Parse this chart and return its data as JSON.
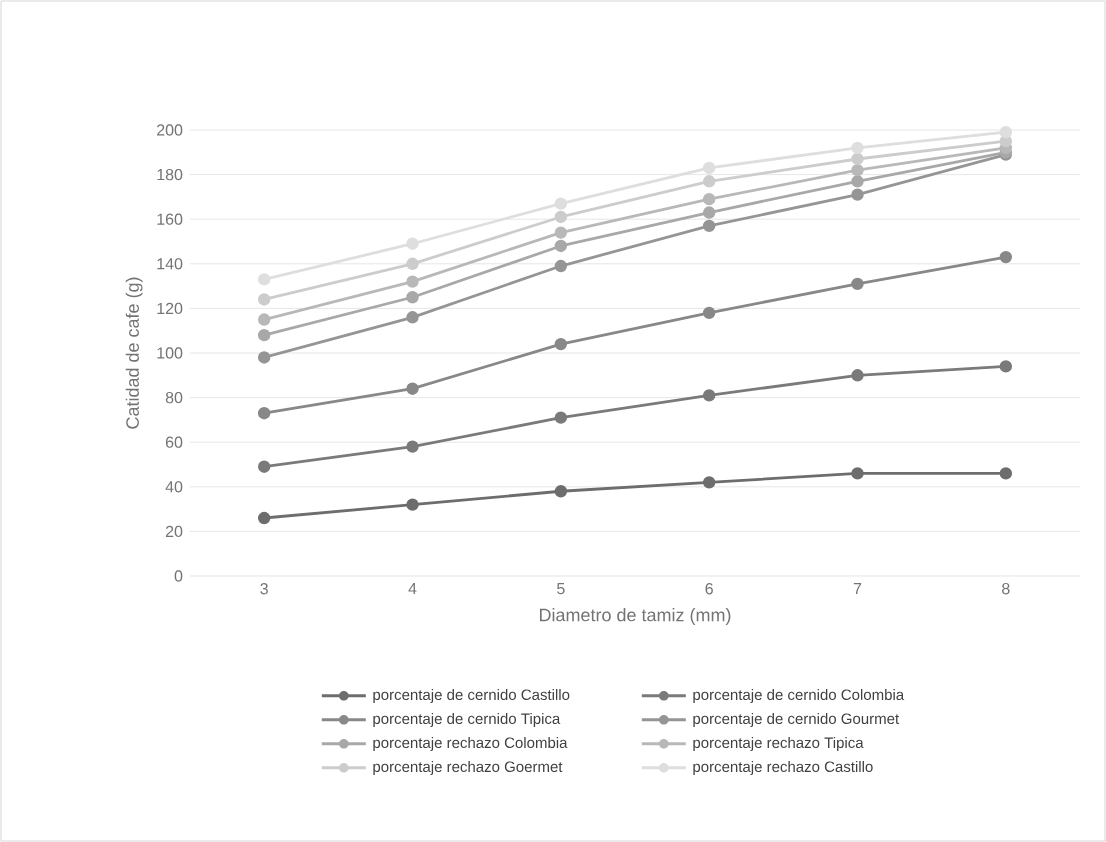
{
  "chart_data": {
    "type": "line",
    "xlabel": "Diametro de tamiz (mm)",
    "ylabel": "Catidad de cafe (g)",
    "categories": [
      "3",
      "4",
      "5",
      "6",
      "7",
      "8"
    ],
    "ylim": [
      0,
      200
    ],
    "yticks": [
      0,
      20,
      40,
      60,
      80,
      100,
      120,
      140,
      160,
      180,
      200
    ],
    "grid": "y",
    "legend": "bottom",
    "marker": "circle",
    "line_style": "solid",
    "series": [
      {
        "name": "porcentaje de cernido Castillo",
        "color": "#6d6d6d",
        "values": [
          26,
          32,
          38,
          42,
          46,
          46
        ]
      },
      {
        "name": "porcentaje de cernido Colombia",
        "color": "#7a7a7a",
        "values": [
          49,
          58,
          71,
          81,
          90,
          94
        ]
      },
      {
        "name": "porcentaje de cernido Tipica",
        "color": "#888888",
        "values": [
          73,
          84,
          104,
          118,
          131,
          143
        ]
      },
      {
        "name": "porcentaje de cernido Gourmet",
        "color": "#959595",
        "values": [
          98,
          116,
          139,
          157,
          171,
          189
        ]
      },
      {
        "name": "porcentaje rechazo Colombia",
        "color": "#a8a8a8",
        "values": [
          108,
          125,
          148,
          163,
          177,
          190
        ]
      },
      {
        "name": "porcentaje rechazo Tipica",
        "color": "#b8b8b8",
        "values": [
          115,
          132,
          154,
          169,
          182,
          192
        ]
      },
      {
        "name": "porcentaje rechazo Goermet",
        "color": "#cccccc",
        "values": [
          124,
          140,
          161,
          177,
          187,
          195
        ]
      },
      {
        "name": "porcentaje rechazo Castillo",
        "color": "#dedede",
        "values": [
          133,
          149,
          167,
          183,
          192,
          199
        ]
      }
    ]
  }
}
